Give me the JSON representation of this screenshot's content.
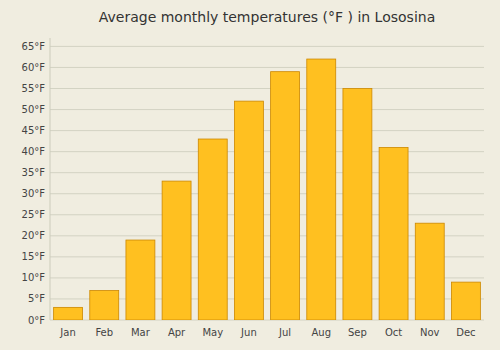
{
  "chart_data": {
    "type": "bar",
    "title": "Average monthly temperatures (°F ) in Lososina",
    "categories": [
      "Jan",
      "Feb",
      "Mar",
      "Apr",
      "May",
      "Jun",
      "Jul",
      "Aug",
      "Sep",
      "Oct",
      "Nov",
      "Dec"
    ],
    "values": [
      3,
      7,
      19,
      33,
      43,
      52,
      59,
      62,
      55,
      41,
      23,
      9
    ],
    "color": "#FFC020",
    "ylim": [
      0,
      67
    ],
    "yticks": [
      {
        "value": 0,
        "label": "0°F"
      },
      {
        "value": 5,
        "label": "5°F"
      },
      {
        "value": 10,
        "label": "10°F"
      },
      {
        "value": 15,
        "label": "15°F"
      },
      {
        "value": 20,
        "label": "20°F"
      },
      {
        "value": 25,
        "label": "25°F"
      },
      {
        "value": 30,
        "label": "30°F"
      },
      {
        "value": 35,
        "label": "35°F"
      },
      {
        "value": 40,
        "label": "40°F"
      },
      {
        "value": 45,
        "label": "45°F"
      },
      {
        "value": 50,
        "label": "50°F"
      },
      {
        "value": 55,
        "label": "55°F"
      },
      {
        "value": 60,
        "label": "60°F"
      },
      {
        "value": 65,
        "label": "65°F"
      }
    ],
    "grid": true
  }
}
